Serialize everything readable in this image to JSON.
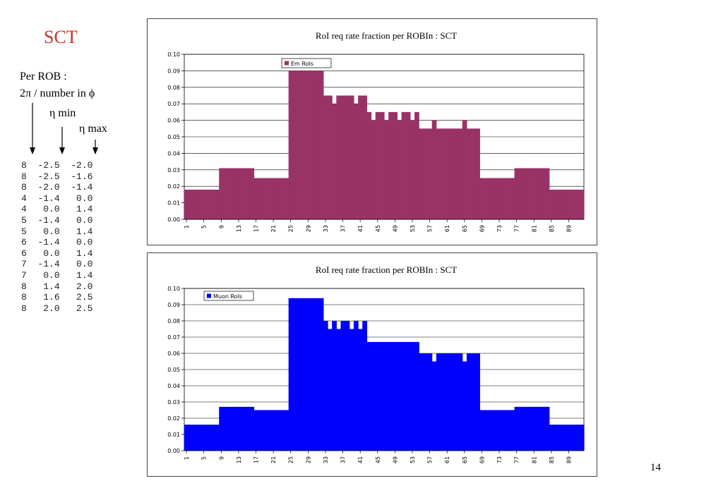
{
  "slide": {
    "title": "SCT",
    "legend_lines": [
      "Per ROB :",
      "2π / number in ϕ",
      "η min",
      "η max"
    ],
    "page_number": "14"
  },
  "rob_table": [
    [
      "8",
      "-2.5",
      "-2.0"
    ],
    [
      "8",
      "-2.5",
      "-1.6"
    ],
    [
      "8",
      "-2.0",
      "-1.4"
    ],
    [
      "4",
      "-1.4",
      "0.0"
    ],
    [
      "4",
      "0.0",
      "1.4"
    ],
    [
      "5",
      "-1.4",
      "0.0"
    ],
    [
      "5",
      "0.0",
      "1.4"
    ],
    [
      "6",
      "-1.4",
      "0.0"
    ],
    [
      "6",
      "0.0",
      "1.4"
    ],
    [
      "7",
      "-1.4",
      "0.0"
    ],
    [
      "7",
      "0.0",
      "1.4"
    ],
    [
      "8",
      "1.4",
      "2.0"
    ],
    [
      "8",
      "1.6",
      "2.5"
    ],
    [
      "8",
      "2.0",
      "2.5"
    ]
  ],
  "chart_data": [
    {
      "type": "bar",
      "title": "RoI req rate fraction per ROBIn : SCT",
      "ylim": [
        0,
        0.1
      ],
      "yticks": [
        "0.00",
        "0.01",
        "0.02",
        "0.03",
        "0.04",
        "0.05",
        "0.06",
        "0.07",
        "0.08",
        "0.09",
        "0.10"
      ],
      "xticks": [
        1,
        5,
        9,
        13,
        17,
        21,
        25,
        29,
        33,
        37,
        41,
        45,
        49,
        53,
        57,
        61,
        65,
        69,
        73,
        77,
        81,
        85,
        89
      ],
      "grid": true,
      "legend_position": "top-left",
      "color": "#993366",
      "series": [
        {
          "name": "Em RoIs",
          "x": [
            1,
            2,
            3,
            4,
            5,
            6,
            7,
            8,
            9,
            10,
            11,
            12,
            13,
            14,
            15,
            16,
            17,
            18,
            19,
            20,
            21,
            22,
            23,
            24,
            25,
            26,
            27,
            28,
            29,
            30,
            31,
            32,
            33,
            34,
            35,
            36,
            37,
            38,
            39,
            40,
            41,
            42,
            43,
            44,
            45,
            46,
            47,
            48,
            49,
            50,
            51,
            52,
            53,
            54,
            55,
            56,
            57,
            58,
            59,
            60,
            61,
            62,
            63,
            64,
            65,
            66,
            67,
            68,
            69,
            70,
            71,
            72,
            73,
            74,
            75,
            76,
            77,
            78,
            79,
            80,
            81,
            82,
            83,
            84,
            85,
            86,
            87,
            88,
            89,
            90,
            91,
            92
          ],
          "values": [
            0.018,
            0.018,
            0.018,
            0.018,
            0.018,
            0.018,
            0.018,
            0.018,
            0.031,
            0.031,
            0.031,
            0.031,
            0.031,
            0.031,
            0.031,
            0.031,
            0.025,
            0.025,
            0.025,
            0.025,
            0.025,
            0.025,
            0.025,
            0.025,
            0.09,
            0.09,
            0.09,
            0.09,
            0.09,
            0.09,
            0.09,
            0.09,
            0.075,
            0.075,
            0.07,
            0.075,
            0.075,
            0.075,
            0.075,
            0.07,
            0.075,
            0.075,
            0.065,
            0.06,
            0.065,
            0.065,
            0.06,
            0.065,
            0.065,
            0.06,
            0.065,
            0.065,
            0.06,
            0.065,
            0.055,
            0.055,
            0.055,
            0.06,
            0.055,
            0.055,
            0.055,
            0.055,
            0.055,
            0.055,
            0.06,
            0.055,
            0.055,
            0.055,
            0.025,
            0.025,
            0.025,
            0.025,
            0.025,
            0.025,
            0.025,
            0.025,
            0.031,
            0.031,
            0.031,
            0.031,
            0.031,
            0.031,
            0.031,
            0.031,
            0.018,
            0.018,
            0.018,
            0.018,
            0.018,
            0.018,
            0.018,
            0.018
          ]
        }
      ]
    },
    {
      "type": "bar",
      "title": "RoI req rate fraction per ROBIn : SCT",
      "ylim": [
        0,
        0.1
      ],
      "yticks": [
        "0.00",
        "0.01",
        "0.02",
        "0.03",
        "0.04",
        "0.05",
        "0.06",
        "0.07",
        "0.08",
        "0.09",
        "0.10"
      ],
      "xticks": [
        1,
        5,
        9,
        13,
        17,
        21,
        25,
        29,
        33,
        37,
        41,
        45,
        49,
        53,
        57,
        61,
        65,
        69,
        73,
        77,
        81,
        85,
        89
      ],
      "grid": true,
      "legend_position": "top-left",
      "color": "#0000ff",
      "series": [
        {
          "name": "Muon RoIs",
          "x": [
            1,
            2,
            3,
            4,
            5,
            6,
            7,
            8,
            9,
            10,
            11,
            12,
            13,
            14,
            15,
            16,
            17,
            18,
            19,
            20,
            21,
            22,
            23,
            24,
            25,
            26,
            27,
            28,
            29,
            30,
            31,
            32,
            33,
            34,
            35,
            36,
            37,
            38,
            39,
            40,
            41,
            42,
            43,
            44,
            45,
            46,
            47,
            48,
            49,
            50,
            51,
            52,
            53,
            54,
            55,
            56,
            57,
            58,
            59,
            60,
            61,
            62,
            63,
            64,
            65,
            66,
            67,
            68,
            69,
            70,
            71,
            72,
            73,
            74,
            75,
            76,
            77,
            78,
            79,
            80,
            81,
            82,
            83,
            84,
            85,
            86,
            87,
            88,
            89,
            90,
            91,
            92
          ],
          "values": [
            0.016,
            0.016,
            0.016,
            0.016,
            0.016,
            0.016,
            0.016,
            0.016,
            0.027,
            0.027,
            0.027,
            0.027,
            0.027,
            0.027,
            0.027,
            0.027,
            0.025,
            0.025,
            0.025,
            0.025,
            0.025,
            0.025,
            0.025,
            0.025,
            0.094,
            0.094,
            0.094,
            0.094,
            0.094,
            0.094,
            0.094,
            0.094,
            0.08,
            0.075,
            0.08,
            0.075,
            0.08,
            0.08,
            0.075,
            0.08,
            0.075,
            0.08,
            0.067,
            0.067,
            0.067,
            0.067,
            0.067,
            0.067,
            0.067,
            0.067,
            0.067,
            0.067,
            0.067,
            0.067,
            0.06,
            0.06,
            0.06,
            0.055,
            0.06,
            0.06,
            0.06,
            0.06,
            0.06,
            0.06,
            0.055,
            0.06,
            0.06,
            0.06,
            0.025,
            0.025,
            0.025,
            0.025,
            0.025,
            0.025,
            0.025,
            0.025,
            0.027,
            0.027,
            0.027,
            0.027,
            0.027,
            0.027,
            0.027,
            0.027,
            0.016,
            0.016,
            0.016,
            0.016,
            0.016,
            0.016,
            0.016,
            0.016
          ]
        }
      ]
    }
  ]
}
